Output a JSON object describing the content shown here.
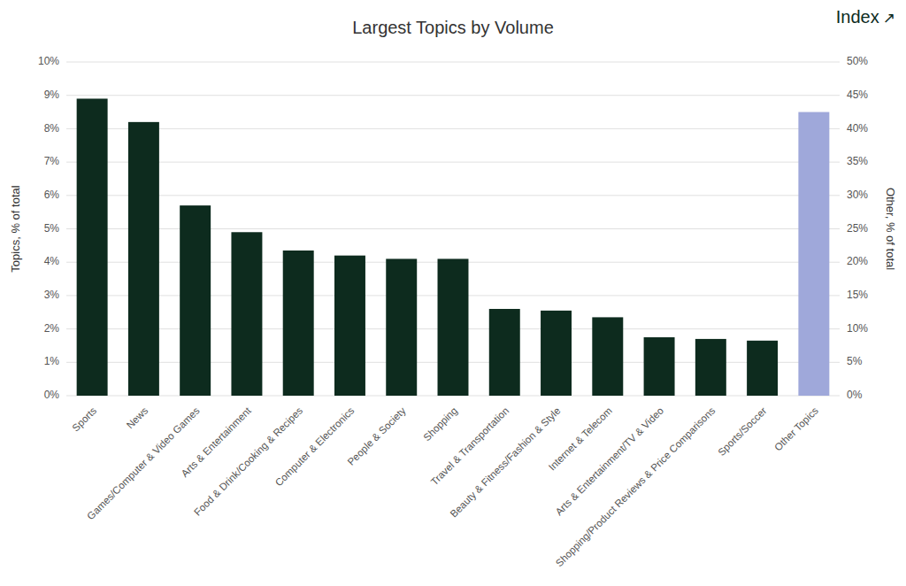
{
  "chart_data": {
    "type": "bar",
    "title": "Largest Topics by Volume",
    "ylabel": "Topics, % of total",
    "y2label": "Other, % of total",
    "annotations": [
      "Index",
      "↗"
    ],
    "categories": [
      "Sports",
      "News",
      "Games/Computer & Video Games",
      "Arts & Entertainment",
      "Food & Drink/Cooking & Recipes",
      "Computer & Electronics",
      "People & Society",
      "Shopping",
      "Travel & Transportation",
      "Beauty & Fitness/Fashion & Style",
      "Internet & Telecom",
      "Arts & Entertainment/TV & Video",
      "Shopping/Product Reviews & Price Comparisons",
      "Sports/Soccer",
      "Other Topics"
    ],
    "series": [
      {
        "color": "#0d2b1e",
        "values": [
          8.9,
          8.2,
          5.7,
          4.9,
          4.35,
          4.2,
          4.1,
          4.1,
          2.6,
          2.55,
          2.35,
          1.75,
          1.7,
          1.65,
          null
        ]
      },
      {
        "color": "#9fa8da",
        "axis": "y2",
        "values": [
          null,
          null,
          null,
          null,
          null,
          null,
          null,
          null,
          null,
          null,
          null,
          null,
          null,
          null,
          42.5
        ]
      }
    ],
    "ylim": [
      0,
      10
    ],
    "yticks": [
      {
        "value": 0,
        "label": "0%"
      },
      {
        "value": 1,
        "label": "1%"
      },
      {
        "value": 2,
        "label": "2%"
      },
      {
        "value": 3,
        "label": "3%"
      },
      {
        "value": 4,
        "label": "4%"
      },
      {
        "value": 5,
        "label": "5%"
      },
      {
        "value": 6,
        "label": "6%"
      },
      {
        "value": 7,
        "label": "7%"
      },
      {
        "value": 8,
        "label": "8%"
      },
      {
        "value": 9,
        "label": "9%"
      },
      {
        "value": 10,
        "label": "10%"
      }
    ],
    "y2lim": [
      0,
      50
    ],
    "y2ticks": [
      {
        "value": 0,
        "label": "0%"
      },
      {
        "value": 5,
        "label": "5%"
      },
      {
        "value": 10,
        "label": "10%"
      },
      {
        "value": 15,
        "label": "15%"
      },
      {
        "value": 20,
        "label": "20%"
      },
      {
        "value": 25,
        "label": "25%"
      },
      {
        "value": 30,
        "label": "30%"
      },
      {
        "value": 35,
        "label": "35%"
      },
      {
        "value": 40,
        "label": "40%"
      },
      {
        "value": 45,
        "label": "45%"
      },
      {
        "value": 50,
        "label": "50%"
      }
    ],
    "grid": true
  }
}
